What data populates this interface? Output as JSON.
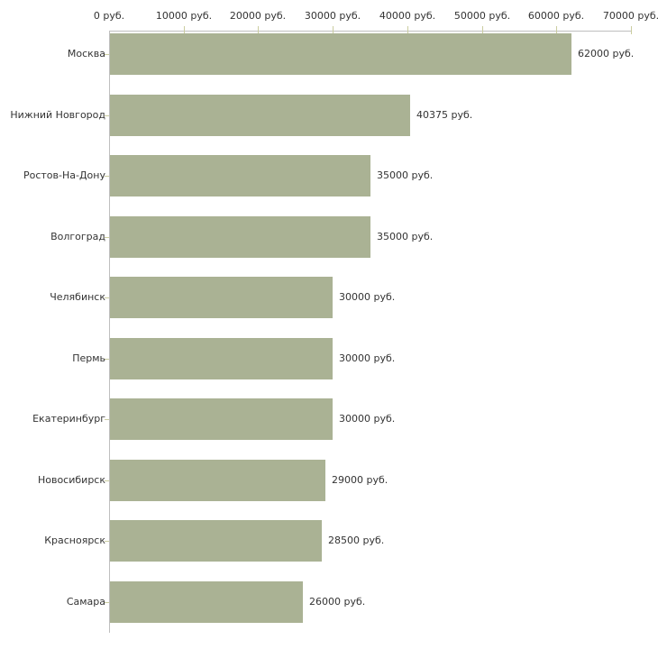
{
  "chart_data": {
    "type": "bar",
    "orientation": "horizontal",
    "title": "",
    "xlabel": "",
    "ylabel": "",
    "grid": false,
    "legend": false,
    "xlim": [
      0,
      70000
    ],
    "x_ticks": [
      0,
      10000,
      20000,
      30000,
      40000,
      50000,
      60000,
      70000
    ],
    "x_tick_labels": [
      "0 руб.",
      "10000 руб.",
      "20000 руб.",
      "30000 руб.",
      "40000 руб.",
      "50000 руб.",
      "60000 руб.",
      "70000 руб."
    ],
    "categories": [
      "Москва",
      "Нижний Новгород",
      "Ростов-На-Дону",
      "Волгоград",
      "Челябинск",
      "Пермь",
      "Екатеринбург",
      "Новосибирск",
      "Красноярск",
      "Самара"
    ],
    "values": [
      62000,
      40375,
      35000,
      35000,
      30000,
      30000,
      30000,
      29000,
      28500,
      26000
    ],
    "value_labels": [
      "62000 руб.",
      "40375 руб.",
      "35000 руб.",
      "35000 руб.",
      "30000 руб.",
      "30000 руб.",
      "30000 руб.",
      "29000 руб.",
      "28500 руб.",
      "26000 руб."
    ],
    "colors": {
      "bar": "#aab294",
      "axis_line": "#bfbfbf",
      "tick_mark": "#cbcda0",
      "text": "#333333",
      "background": "#ffffff"
    }
  }
}
